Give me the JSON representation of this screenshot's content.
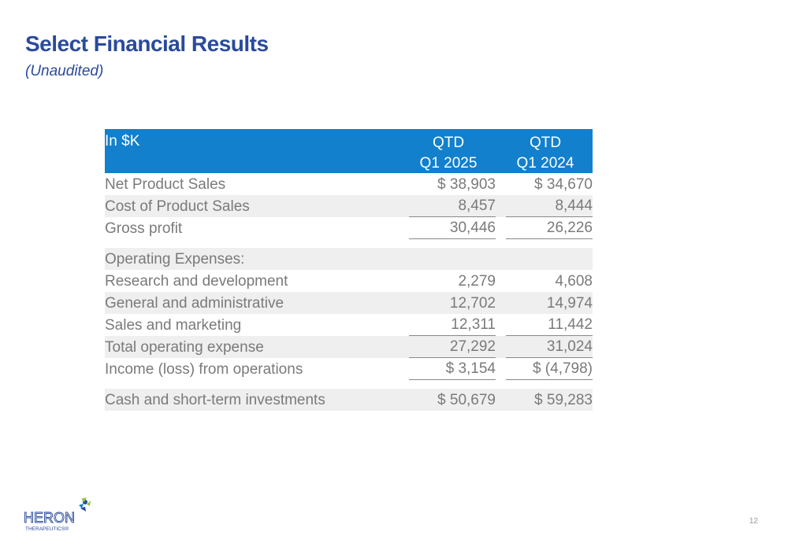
{
  "title": "Select Financial Results",
  "subtitle": "(Unaudited)",
  "table": {
    "header": {
      "label": "In $K",
      "col1_line1": "QTD",
      "col1_line2": "Q1 2025",
      "col2_line1": "QTD",
      "col2_line2": "Q1 2024"
    },
    "rows": [
      {
        "label": "Net Product Sales",
        "v1": "$ 38,903",
        "v2": "$ 34,670"
      },
      {
        "label": "Cost of Product Sales",
        "v1": "8,457",
        "v2": "8,444"
      },
      {
        "label": "Gross profit",
        "v1": "30,446",
        "v2": "26,226"
      },
      {
        "label": "Operating Expenses:",
        "v1": "",
        "v2": ""
      },
      {
        "label": "Research and development",
        "v1": "2,279",
        "v2": "4,608"
      },
      {
        "label": "General and administrative",
        "v1": "12,702",
        "v2": "14,974"
      },
      {
        "label": "Sales and marketing",
        "v1": "12,311",
        "v2": "11,442"
      },
      {
        "label": "Total operating expense",
        "v1": "27,292",
        "v2": "31,024"
      },
      {
        "label": "Income (loss) from operations",
        "v1": "$ 3,154",
        "v2": "$ (4,798)"
      },
      {
        "label": "Cash and short-term investments",
        "v1": "$ 50,679",
        "v2": "$ 59,283"
      }
    ]
  },
  "logo": {
    "name": "HERON",
    "tagline": "THERAPEUTICS®"
  },
  "page_number": "12",
  "colors": {
    "title": "#2a4a9c",
    "header_bg": "#1280cc",
    "text": "#7a7a7a",
    "row_shade": "#efefef"
  }
}
